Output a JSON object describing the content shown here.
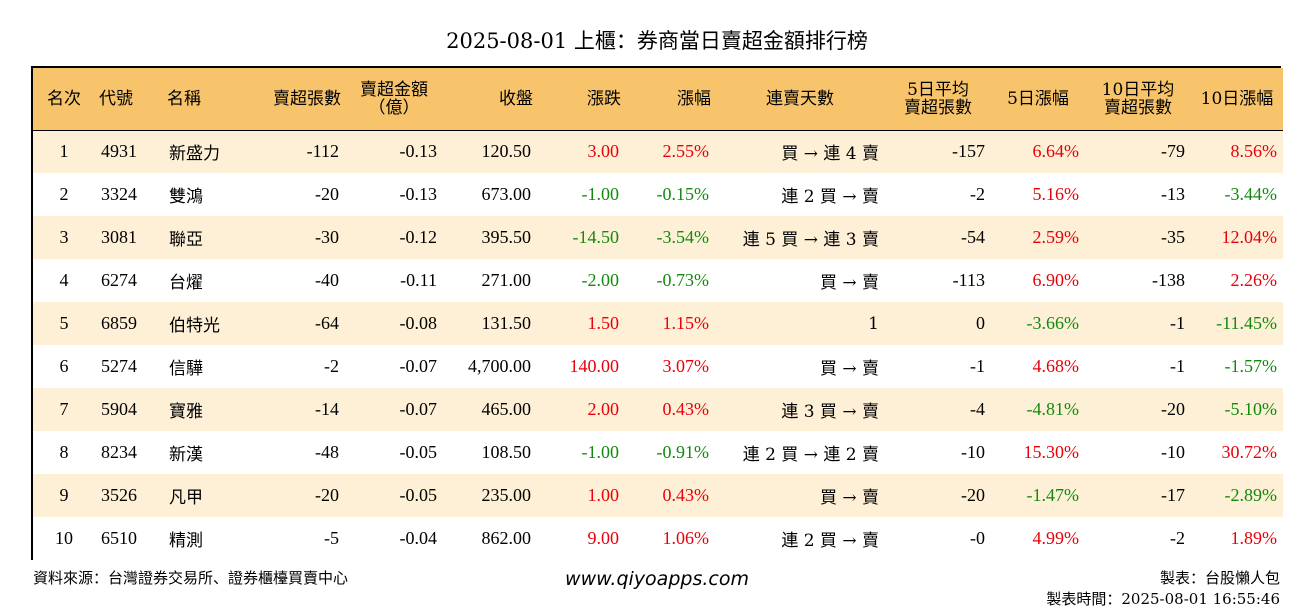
{
  "title": "2025-08-01 上櫃：券商當日賣超金額排行榜",
  "header": {
    "rank": "名次",
    "code": "代號",
    "name": "名稱",
    "net_sell_lots": "賣超張數",
    "net_sell_amount_l1": "賣超金額",
    "net_sell_amount_l2": "（億）",
    "close": "收盤",
    "change": "漲跌",
    "change_pct": "漲幅",
    "streak": "連賣天數",
    "avg5_l1": "5日平均",
    "avg5_l2": "賣超張數",
    "chg5": "5日漲幅",
    "avg10_l1": "10日平均",
    "avg10_l2": "賣超張數",
    "chg10": "10日漲幅"
  },
  "rows": [
    {
      "rank": "1",
      "code": "4931",
      "name": "新盛力",
      "lots": "-112",
      "amount": "-0.13",
      "close": "120.50",
      "change": "3.00",
      "change_dir": "up",
      "pct": "2.55%",
      "pct_dir": "up",
      "streak": "買 → 連 4 賣",
      "avg5": "-157",
      "chg5": "6.64%",
      "chg5_dir": "up",
      "avg10": "-79",
      "chg10": "8.56%",
      "chg10_dir": "up"
    },
    {
      "rank": "2",
      "code": "3324",
      "name": "雙鴻",
      "lots": "-20",
      "amount": "-0.13",
      "close": "673.00",
      "change": "-1.00",
      "change_dir": "dn",
      "pct": "-0.15%",
      "pct_dir": "dn",
      "streak": "連 2 買 → 賣",
      "avg5": "-2",
      "chg5": "5.16%",
      "chg5_dir": "up",
      "avg10": "-13",
      "chg10": "-3.44%",
      "chg10_dir": "dn"
    },
    {
      "rank": "3",
      "code": "3081",
      "name": "聯亞",
      "lots": "-30",
      "amount": "-0.12",
      "close": "395.50",
      "change": "-14.50",
      "change_dir": "dn",
      "pct": "-3.54%",
      "pct_dir": "dn",
      "streak": "連 5 買 → 連 3 賣",
      "avg5": "-54",
      "chg5": "2.59%",
      "chg5_dir": "up",
      "avg10": "-35",
      "chg10": "12.04%",
      "chg10_dir": "up"
    },
    {
      "rank": "4",
      "code": "6274",
      "name": "台燿",
      "lots": "-40",
      "amount": "-0.11",
      "close": "271.00",
      "change": "-2.00",
      "change_dir": "dn",
      "pct": "-0.73%",
      "pct_dir": "dn",
      "streak": "買 → 賣",
      "avg5": "-113",
      "chg5": "6.90%",
      "chg5_dir": "up",
      "avg10": "-138",
      "chg10": "2.26%",
      "chg10_dir": "up"
    },
    {
      "rank": "5",
      "code": "6859",
      "name": "伯特光",
      "lots": "-64",
      "amount": "-0.08",
      "close": "131.50",
      "change": "1.50",
      "change_dir": "up",
      "pct": "1.15%",
      "pct_dir": "up",
      "streak": "1",
      "avg5": "0",
      "chg5": "-3.66%",
      "chg5_dir": "dn",
      "avg10": "-1",
      "chg10": "-11.45%",
      "chg10_dir": "dn"
    },
    {
      "rank": "6",
      "code": "5274",
      "name": "信驊",
      "lots": "-2",
      "amount": "-0.07",
      "close": "4,700.00",
      "change": "140.00",
      "change_dir": "up",
      "pct": "3.07%",
      "pct_dir": "up",
      "streak": "買 → 賣",
      "avg5": "-1",
      "chg5": "4.68%",
      "chg5_dir": "up",
      "avg10": "-1",
      "chg10": "-1.57%",
      "chg10_dir": "dn"
    },
    {
      "rank": "7",
      "code": "5904",
      "name": "寶雅",
      "lots": "-14",
      "amount": "-0.07",
      "close": "465.00",
      "change": "2.00",
      "change_dir": "up",
      "pct": "0.43%",
      "pct_dir": "up",
      "streak": "連 3 買 → 賣",
      "avg5": "-4",
      "chg5": "-4.81%",
      "chg5_dir": "dn",
      "avg10": "-20",
      "chg10": "-5.10%",
      "chg10_dir": "dn"
    },
    {
      "rank": "8",
      "code": "8234",
      "name": "新漢",
      "lots": "-48",
      "amount": "-0.05",
      "close": "108.50",
      "change": "-1.00",
      "change_dir": "dn",
      "pct": "-0.91%",
      "pct_dir": "dn",
      "streak": "連 2 買 → 連 2 賣",
      "avg5": "-10",
      "chg5": "15.30%",
      "chg5_dir": "up",
      "avg10": "-10",
      "chg10": "30.72%",
      "chg10_dir": "up"
    },
    {
      "rank": "9",
      "code": "3526",
      "name": "凡甲",
      "lots": "-20",
      "amount": "-0.05",
      "close": "235.00",
      "change": "1.00",
      "change_dir": "up",
      "pct": "0.43%",
      "pct_dir": "up",
      "streak": "買 → 賣",
      "avg5": "-20",
      "chg5": "-1.47%",
      "chg5_dir": "dn",
      "avg10": "-17",
      "chg10": "-2.89%",
      "chg10_dir": "dn"
    },
    {
      "rank": "10",
      "code": "6510",
      "name": "精測",
      "lots": "-5",
      "amount": "-0.04",
      "close": "862.00",
      "change": "9.00",
      "change_dir": "up",
      "pct": "1.06%",
      "pct_dir": "up",
      "streak": "連 2 買 → 賣",
      "avg5": "-0",
      "chg5": "4.99%",
      "chg5_dir": "up",
      "avg10": "-2",
      "chg10": "1.89%",
      "chg10_dir": "up"
    }
  ],
  "colors": {
    "up": "#e8000b",
    "down": "#128a0e",
    "header_bg": "#f7c46b",
    "odd_row_bg": "#fdf0d6"
  },
  "footer": {
    "source": "資料來源：台灣證券交易所、證券櫃檯買賣中心",
    "website": "www.qiyoapps.com",
    "author": "製表：台股懶人包",
    "time": "製表時間：2025-08-01 16:55:46"
  }
}
